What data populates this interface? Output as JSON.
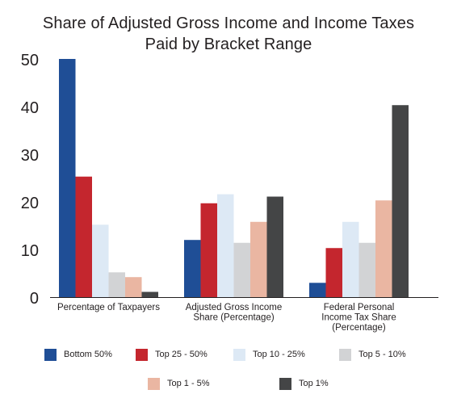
{
  "chart_data": {
    "type": "bar",
    "title": [
      "Share of Adjusted Gross Income and Income Taxes",
      "Paid by Bracket Range"
    ],
    "xlabel": "",
    "ylabel": "",
    "ylim": [
      0,
      50
    ],
    "yticks": [
      "0",
      "10",
      "20",
      "30",
      "40",
      "50"
    ],
    "grid": false,
    "legend_position": "bottom",
    "categories": [
      [
        "Percentage of Taxpayers"
      ],
      [
        "Adjusted Gross Income",
        "Share (Percentage)"
      ],
      [
        "Federal Personal",
        "Income Tax Share",
        "(Percentage)"
      ]
    ],
    "series": [
      {
        "name": "Bottom 50%",
        "color": "#1f4e96",
        "values": [
          50,
          12,
          3
        ]
      },
      {
        "name": "Top 25 - 50%",
        "color": "#c4262e",
        "values": [
          25.3,
          19.7,
          10.3
        ]
      },
      {
        "name": "Top 10 - 25%",
        "color": "#dde9f5",
        "values": [
          15.2,
          21.6,
          15.8
        ]
      },
      {
        "name": "Top 5 - 10%",
        "color": "#d2d3d5",
        "values": [
          5.2,
          11.4,
          11.4
        ]
      },
      {
        "name": "Top 1 - 5%",
        "color": "#eab6a2",
        "values": [
          4.2,
          15.8,
          20.3
        ]
      },
      {
        "name": "Top 1%",
        "color": "#444546",
        "values": [
          1.1,
          21.1,
          40.3
        ]
      }
    ]
  }
}
